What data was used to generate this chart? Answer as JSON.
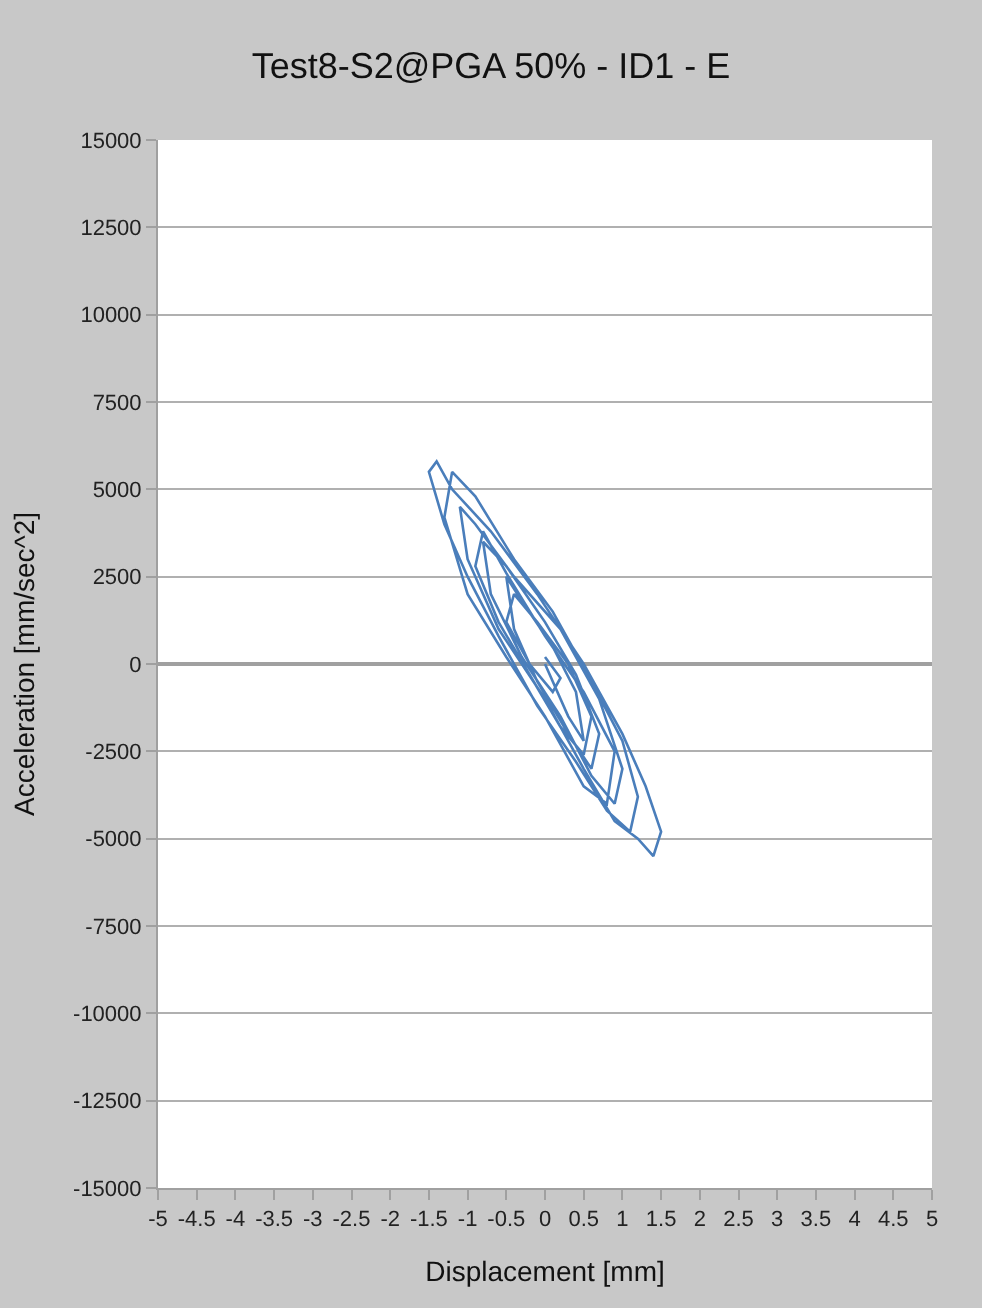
{
  "chart_data": {
    "type": "line",
    "title": "Test8-S2@PGA 50% - ID1 - E",
    "xlabel": "Displacement [mm]",
    "ylabel": "Acceleration [mm/sec^2]",
    "xlim": [
      -5,
      5
    ],
    "xticks": [
      -5,
      -4.5,
      -4,
      -3.5,
      -3,
      -2.5,
      -2,
      -1.5,
      -1,
      -0.5,
      0,
      0.5,
      1,
      1.5,
      2,
      2.5,
      3,
      3.5,
      4,
      4.5,
      5
    ],
    "ylim": [
      -15000,
      15000
    ],
    "yticks": [
      -15000,
      -12500,
      -10000,
      -7500,
      -5000,
      -2500,
      0,
      2500,
      5000,
      7500,
      10000,
      12500,
      15000
    ],
    "grid": "y",
    "marker": "none",
    "line_style": "solid",
    "x": [
      0,
      0.3,
      0.5,
      0.4,
      0.1,
      -0.3,
      -0.5,
      -0.4,
      -0.1,
      0.3,
      0.6,
      0.7,
      0.4,
      0,
      -0.5,
      -0.8,
      -0.7,
      -0.3,
      0.2,
      0.6,
      0.9,
      1.0,
      0.7,
      0.2,
      -0.4,
      -0.9,
      -1.1,
      -1.0,
      -0.6,
      0,
      0.5,
      0.9,
      1.2,
      1.4,
      1.5,
      1.3,
      1.0,
      0.5,
      -0.1,
      -0.7,
      -1.2,
      -1.4,
      -1.5,
      -1.3,
      -1.0,
      -0.6,
      -0.1,
      0.4,
      0.8,
      1.1,
      1.2,
      1.0,
      0.6,
      0.1,
      -0.4,
      -0.9,
      -1.2,
      -1.3,
      -1.0,
      -0.5,
      0,
      0.5,
      0.8,
      0.9,
      0.5,
      0,
      -0.5,
      -0.8,
      -0.9,
      -0.6,
      -0.2,
      0.2,
      0.5,
      0.6,
      0.3,
      -0.1,
      -0.4,
      -0.5,
      -0.2,
      0.1,
      0.2,
      0
    ],
    "series": [
      {
        "color": "#4a7ebb",
        "values": [
          0,
          -1500,
          -2200,
          -800,
          500,
          1800,
          2500,
          1000,
          -500,
          -2000,
          -3000,
          -2000,
          -300,
          1200,
          2800,
          3500,
          2000,
          200,
          -1500,
          -3200,
          -4000,
          -3000,
          -1000,
          1000,
          2500,
          4000,
          4500,
          3000,
          1000,
          -1000,
          -3000,
          -4500,
          -5000,
          -5500,
          -4800,
          -3500,
          -2000,
          0,
          2000,
          3800,
          5000,
          5800,
          5500,
          4000,
          2500,
          800,
          -1200,
          -2800,
          -4200,
          -4800,
          -3800,
          -2200,
          -500,
          1500,
          3000,
          4800,
          5500,
          4200,
          2000,
          200,
          -1500,
          -3500,
          -4000,
          -2500,
          -800,
          800,
          2600,
          3800,
          2800,
          1200,
          -300,
          -1800,
          -2600,
          -1500,
          0,
          1200,
          2000,
          1200,
          0,
          -800,
          -400,
          200
        ]
      }
    ]
  }
}
